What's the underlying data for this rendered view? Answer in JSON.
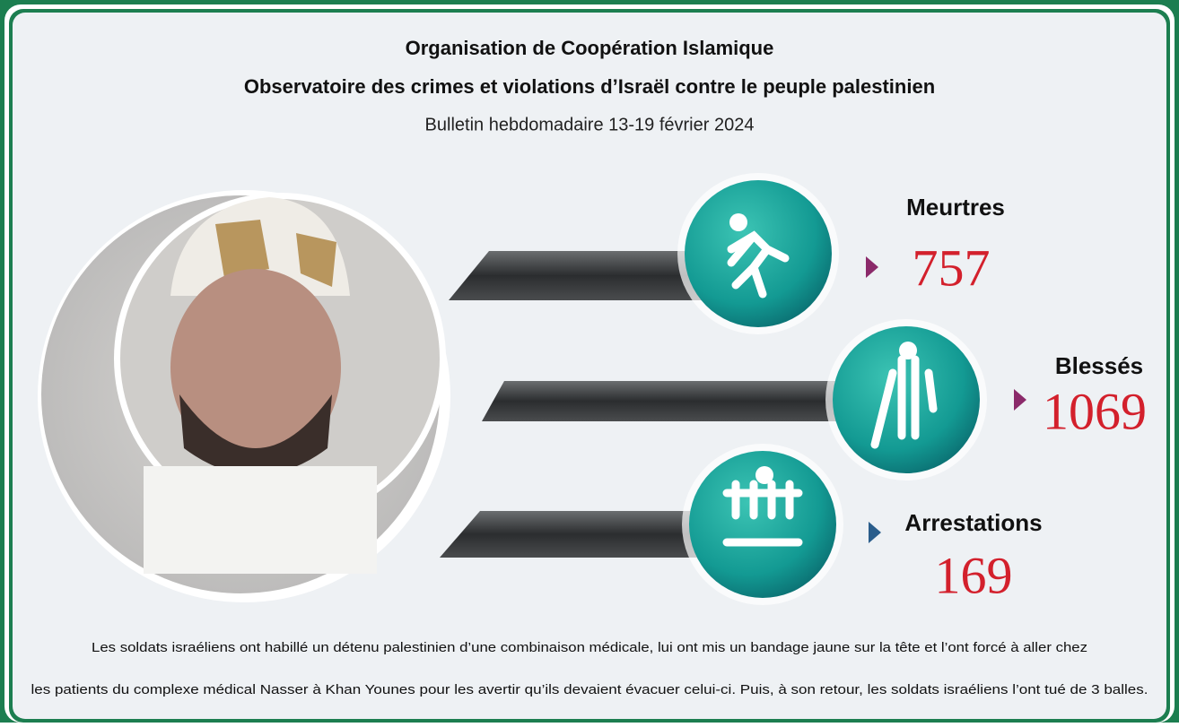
{
  "header": {
    "title": "Organisation de Coopération Islamique",
    "subtitle": "Observatoire des crimes et violations d’Israël contre le peuple palestinien",
    "bulletin": "Bulletin hebdomadaire 13-19 février 2024"
  },
  "stats": [
    {
      "label": "Meurtres",
      "value": 757
    },
    {
      "label": "Blessés",
      "value": 1069
    },
    {
      "label": "Arrestations",
      "value": 169
    }
  ],
  "caption": [
    "Les soldats israéliens ont habillé un détenu palestinien d’une combinaison médicale, lui ont mis un bandage jaune sur la tête et l’ont forcé à aller chez",
    "les patients du complexe médical Nasser à Khan Younes pour les avertir qu’ils devaient évacuer celui-ci. Puis, à son retour, les soldats israéliens l’ont tué de 3 balles."
  ]
}
